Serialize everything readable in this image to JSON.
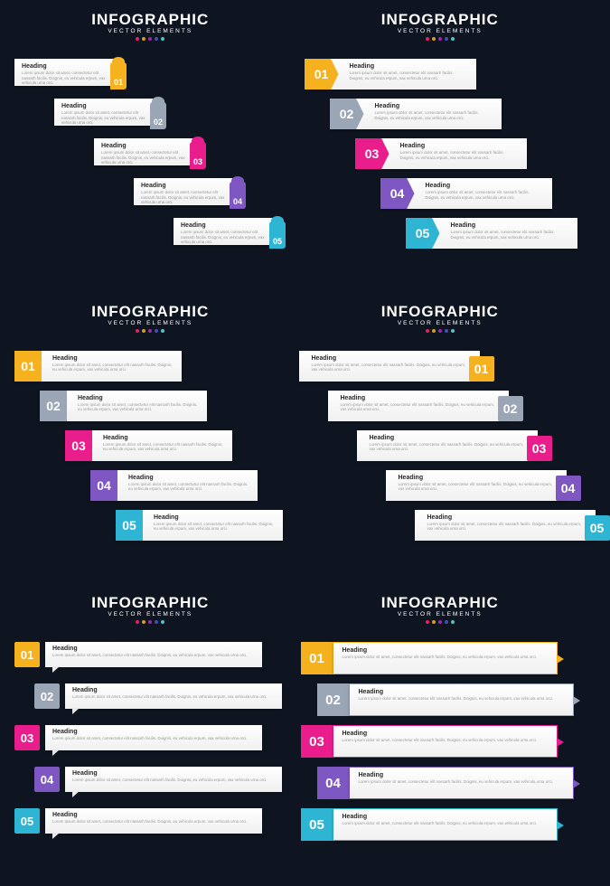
{
  "title": "INFOGRAPHIC",
  "subtitle": "VECTOR ELEMENTS",
  "dot_colors": [
    "#e91e63",
    "#d4a017",
    "#9c27b0",
    "#3f51b5",
    "#4fc3c7"
  ],
  "colors": {
    "bg": "#0e1521",
    "c1": "#f5b21e",
    "c2": "#9aa5b5",
    "c3": "#e91e8c",
    "c4": "#7e57c2",
    "c5": "#2fb5d4"
  },
  "item": {
    "heading": "Heading",
    "body": "Lorem ipsum dolor sit amet, consectetur elit nassarh facilis. Doignis, eu vehicula erpum, vax vehicula urna orci."
  },
  "numbers": [
    "01",
    "02",
    "03",
    "04",
    "05"
  ],
  "panels": {
    "s1": {
      "offsets": [
        0,
        44,
        88,
        132,
        176
      ],
      "tops": [
        0,
        44,
        88,
        132,
        176
      ]
    },
    "s2": {
      "offsets": [
        0,
        28,
        56,
        84,
        112
      ],
      "tops": [
        0,
        44,
        88,
        132,
        176
      ]
    },
    "s3": {
      "offsets": [
        0,
        28,
        56,
        84,
        112
      ],
      "tops": [
        0,
        44,
        88,
        132,
        176
      ]
    },
    "s4": {
      "offsets": [
        0,
        32,
        64,
        96,
        128
      ],
      "tops": [
        0,
        44,
        88,
        132,
        176
      ]
    },
    "s5": {
      "offsets": [
        0,
        22,
        0,
        22,
        0
      ],
      "tops": [
        0,
        46,
        92,
        138,
        184
      ]
    },
    "s6": {
      "offsets": [
        0,
        18,
        0,
        18,
        0
      ],
      "tops": [
        0,
        46,
        92,
        138,
        184
      ]
    }
  }
}
